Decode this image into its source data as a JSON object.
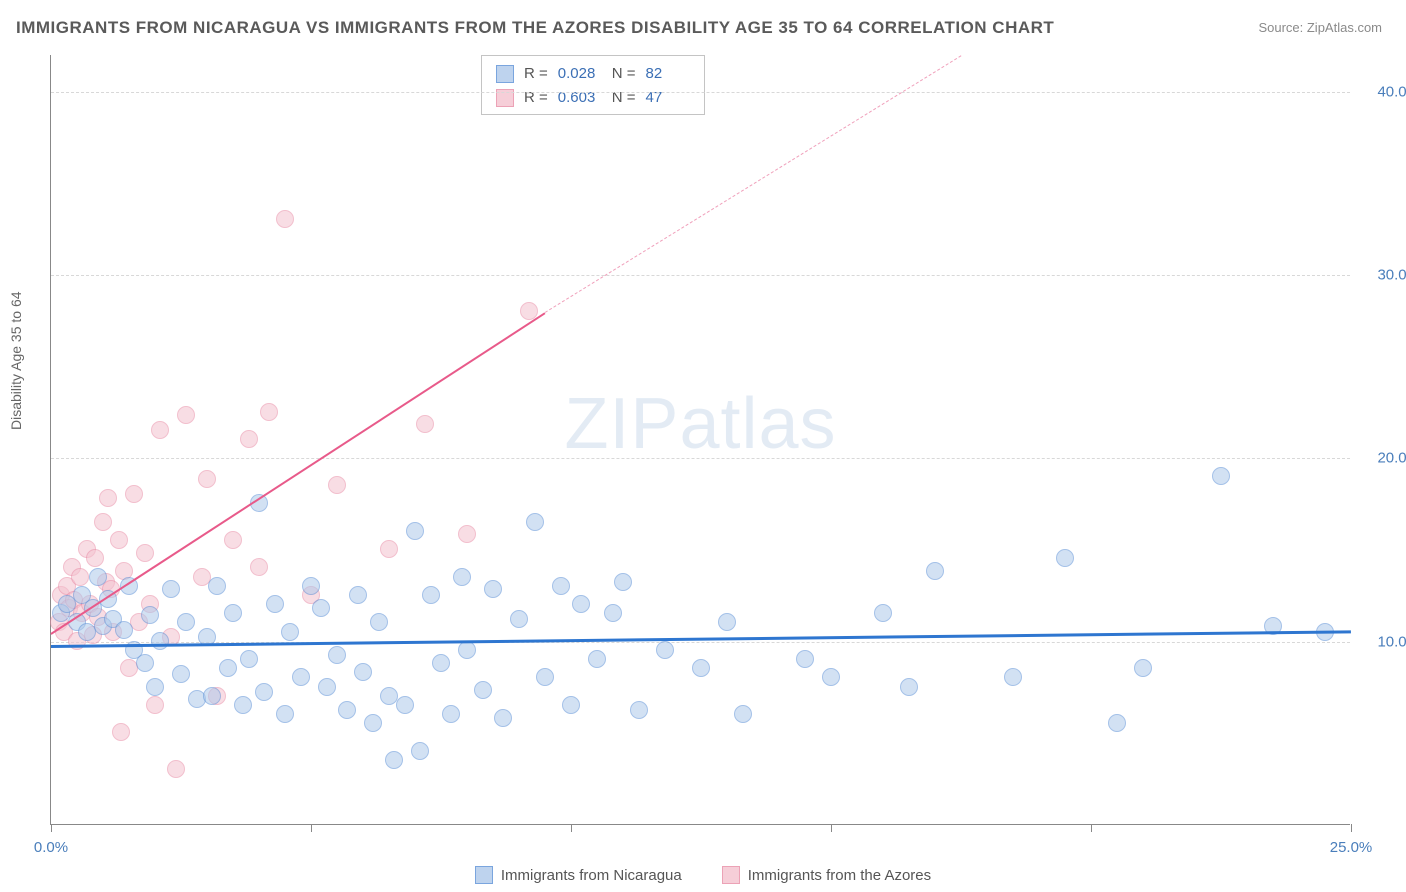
{
  "title": "IMMIGRANTS FROM NICARAGUA VS IMMIGRANTS FROM THE AZORES DISABILITY AGE 35 TO 64 CORRELATION CHART",
  "source": "Source: ZipAtlas.com",
  "ylabel": "Disability Age 35 to 64",
  "watermark_a": "ZIP",
  "watermark_b": "atlas",
  "chart": {
    "type": "scatter",
    "xlim": [
      0,
      25
    ],
    "ylim": [
      0,
      42
    ],
    "xticks": [
      0,
      5,
      10,
      15,
      20,
      25
    ],
    "xtick_labels": [
      "0.0%",
      "",
      "",
      "",
      "",
      "25.0%"
    ],
    "yticks": [
      10,
      20,
      30,
      40
    ],
    "ytick_labels": [
      "10.0%",
      "20.0%",
      "30.0%",
      "40.0%"
    ],
    "grid_color": "#d8d8d8",
    "background_color": "#ffffff",
    "marker_radius": 9,
    "marker_border": 1.5,
    "series": [
      {
        "name": "Immigrants from Nicaragua",
        "fill": "#aec9ea",
        "stroke": "#5a8fd6",
        "fill_opacity": 0.55,
        "R": "0.028",
        "N": "82",
        "regression": {
          "x1": 0,
          "y1": 9.8,
          "x2": 25,
          "y2": 10.6,
          "color": "#2e76d0",
          "width": 2.6,
          "dash": false
        },
        "points": [
          [
            0.2,
            11.5
          ],
          [
            0.3,
            12.0
          ],
          [
            0.5,
            11.0
          ],
          [
            0.6,
            12.5
          ],
          [
            0.7,
            10.5
          ],
          [
            0.8,
            11.8
          ],
          [
            0.9,
            13.5
          ],
          [
            1.0,
            10.8
          ],
          [
            1.1,
            12.3
          ],
          [
            1.2,
            11.2
          ],
          [
            1.4,
            10.6
          ],
          [
            1.5,
            13.0
          ],
          [
            1.6,
            9.5
          ],
          [
            1.8,
            8.8
          ],
          [
            1.9,
            11.4
          ],
          [
            2.0,
            7.5
          ],
          [
            2.1,
            10.0
          ],
          [
            2.3,
            12.8
          ],
          [
            2.5,
            8.2
          ],
          [
            2.6,
            11.0
          ],
          [
            2.8,
            6.8
          ],
          [
            3.0,
            10.2
          ],
          [
            3.1,
            7.0
          ],
          [
            3.2,
            13.0
          ],
          [
            3.4,
            8.5
          ],
          [
            3.5,
            11.5
          ],
          [
            3.7,
            6.5
          ],
          [
            3.8,
            9.0
          ],
          [
            4.0,
            17.5
          ],
          [
            4.1,
            7.2
          ],
          [
            4.3,
            12.0
          ],
          [
            4.5,
            6.0
          ],
          [
            4.6,
            10.5
          ],
          [
            4.8,
            8.0
          ],
          [
            5.0,
            13.0
          ],
          [
            5.2,
            11.8
          ],
          [
            5.3,
            7.5
          ],
          [
            5.5,
            9.2
          ],
          [
            5.7,
            6.2
          ],
          [
            5.9,
            12.5
          ],
          [
            6.0,
            8.3
          ],
          [
            6.2,
            5.5
          ],
          [
            6.3,
            11.0
          ],
          [
            6.5,
            7.0
          ],
          [
            6.6,
            3.5
          ],
          [
            6.8,
            6.5
          ],
          [
            7.0,
            16.0
          ],
          [
            7.1,
            4.0
          ],
          [
            7.3,
            12.5
          ],
          [
            7.5,
            8.8
          ],
          [
            7.7,
            6.0
          ],
          [
            7.9,
            13.5
          ],
          [
            8.0,
            9.5
          ],
          [
            8.3,
            7.3
          ],
          [
            8.5,
            12.8
          ],
          [
            8.7,
            5.8
          ],
          [
            9.0,
            11.2
          ],
          [
            9.3,
            16.5
          ],
          [
            9.5,
            8.0
          ],
          [
            9.8,
            13.0
          ],
          [
            10.0,
            6.5
          ],
          [
            10.2,
            12.0
          ],
          [
            10.5,
            9.0
          ],
          [
            10.8,
            11.5
          ],
          [
            11.0,
            13.2
          ],
          [
            11.3,
            6.2
          ],
          [
            11.8,
            9.5
          ],
          [
            12.5,
            8.5
          ],
          [
            13.0,
            11.0
          ],
          [
            13.3,
            6.0
          ],
          [
            14.5,
            9.0
          ],
          [
            15.0,
            8.0
          ],
          [
            16.0,
            11.5
          ],
          [
            16.5,
            7.5
          ],
          [
            17.0,
            13.8
          ],
          [
            18.5,
            8.0
          ],
          [
            19.5,
            14.5
          ],
          [
            20.5,
            5.5
          ],
          [
            21.0,
            8.5
          ],
          [
            22.5,
            19.0
          ],
          [
            23.5,
            10.8
          ],
          [
            24.5,
            10.5
          ]
        ]
      },
      {
        "name": "Immigrants from the Azores",
        "fill": "#f4c2cf",
        "stroke": "#e88ba5",
        "fill_opacity": 0.55,
        "R": "0.603",
        "N": "47",
        "regression": {
          "x1": 0,
          "y1": 10.5,
          "x2": 9.5,
          "y2": 28.0,
          "color": "#e85a8a",
          "width": 2.2,
          "dash": false
        },
        "regression_ext": {
          "x1": 9.5,
          "y1": 28.0,
          "x2": 17.5,
          "y2": 42.0,
          "color": "#f0a0bb",
          "width": 1.6,
          "dash": true
        },
        "points": [
          [
            0.15,
            11.0
          ],
          [
            0.2,
            12.5
          ],
          [
            0.25,
            10.5
          ],
          [
            0.3,
            13.0
          ],
          [
            0.35,
            11.8
          ],
          [
            0.4,
            14.0
          ],
          [
            0.45,
            12.2
          ],
          [
            0.5,
            10.0
          ],
          [
            0.55,
            13.5
          ],
          [
            0.6,
            11.5
          ],
          [
            0.7,
            15.0
          ],
          [
            0.75,
            12.0
          ],
          [
            0.8,
            10.3
          ],
          [
            0.85,
            14.5
          ],
          [
            0.9,
            11.3
          ],
          [
            1.0,
            16.5
          ],
          [
            1.05,
            13.2
          ],
          [
            1.1,
            17.8
          ],
          [
            1.15,
            12.8
          ],
          [
            1.2,
            10.5
          ],
          [
            1.3,
            15.5
          ],
          [
            1.35,
            5.0
          ],
          [
            1.4,
            13.8
          ],
          [
            1.5,
            8.5
          ],
          [
            1.6,
            18.0
          ],
          [
            1.7,
            11.0
          ],
          [
            1.8,
            14.8
          ],
          [
            1.9,
            12.0
          ],
          [
            2.0,
            6.5
          ],
          [
            2.1,
            21.5
          ],
          [
            2.3,
            10.2
          ],
          [
            2.4,
            3.0
          ],
          [
            2.6,
            22.3
          ],
          [
            2.9,
            13.5
          ],
          [
            3.0,
            18.8
          ],
          [
            3.2,
            7.0
          ],
          [
            3.5,
            15.5
          ],
          [
            3.8,
            21.0
          ],
          [
            4.0,
            14.0
          ],
          [
            4.2,
            22.5
          ],
          [
            4.5,
            33.0
          ],
          [
            5.0,
            12.5
          ],
          [
            5.5,
            18.5
          ],
          [
            6.5,
            15.0
          ],
          [
            7.2,
            21.8
          ],
          [
            8.0,
            15.8
          ],
          [
            9.2,
            28.0
          ]
        ]
      }
    ]
  },
  "legend": {
    "series1_label": "Immigrants from Nicaragua",
    "series2_label": "Immigrants from the Azores"
  },
  "stats_labels": {
    "R": "R =",
    "N": "N ="
  }
}
